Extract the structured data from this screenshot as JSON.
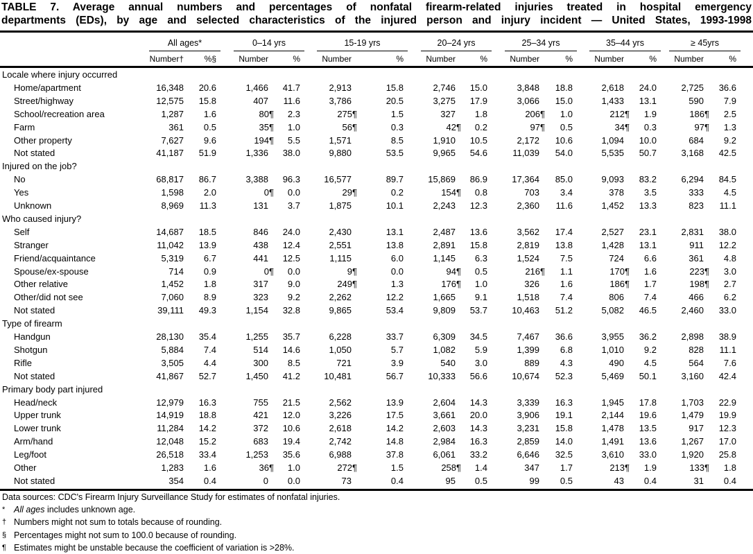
{
  "title": {
    "line1": "TABLE 7. Average annual numbers and percentages of nonfatal firearm-related injuries treated in hospital emergency",
    "line2": "departments (EDs), by age and selected characteristics of the injured person and injury incident — United States, 1993-1998"
  },
  "columns": {
    "groups": [
      "All ages*",
      "0–14 yrs",
      "15-19 yrs",
      "20–24 yrs",
      "25–34 yrs",
      "35–44 yrs",
      "≥ 45yrs"
    ],
    "sub": [
      "Number†",
      "%§",
      "Number",
      "%",
      "Number",
      "%",
      "Number",
      "%",
      "Number",
      "%",
      "Number",
      "%",
      "Number",
      "%"
    ]
  },
  "sections": [
    {
      "title": "Locale where injury occurred",
      "rows": [
        {
          "label": "Home/apartment",
          "values": [
            "16,348",
            "20.6",
            "1,466",
            "41.7",
            "2,913",
            "15.8",
            "2,746",
            "15.0",
            "3,848",
            "18.8",
            "2,618",
            "24.0",
            "2,725",
            "36.6"
          ]
        },
        {
          "label": "Street/highway",
          "values": [
            "12,575",
            "15.8",
            "407",
            "11.6",
            "3,786",
            "20.5",
            "3,275",
            "17.9",
            "3,066",
            "15.0",
            "1,433",
            "13.1",
            "590",
            "7.9"
          ]
        },
        {
          "label": "School/recreation area",
          "values": [
            "1,287",
            "1.6",
            "80¶",
            "2.3",
            "275¶",
            "1.5",
            "327",
            "1.8",
            "206¶",
            "1.0",
            "212¶",
            "1.9",
            "186¶",
            "2.5"
          ]
        },
        {
          "label": "Farm",
          "values": [
            "361",
            "0.5",
            "35¶",
            "1.0",
            "56¶",
            "0.3",
            "42¶",
            "0.2",
            "97¶",
            "0.5",
            "34¶",
            "0.3",
            "97¶",
            "1.3"
          ]
        },
        {
          "label": "Other property",
          "values": [
            "7,627",
            "9.6",
            "194¶",
            "5.5",
            "1,571",
            "8.5",
            "1,910",
            "10.5",
            "2,172",
            "10.6",
            "1,094",
            "10.0",
            "684",
            "9.2"
          ]
        },
        {
          "label": "Not stated",
          "values": [
            "41,187",
            "51.9",
            "1,336",
            "38.0",
            "9,880",
            "53.5",
            "9,965",
            "54.6",
            "11,039",
            "54.0",
            "5,535",
            "50.7",
            "3,168",
            "42.5"
          ]
        }
      ]
    },
    {
      "title": "Injured on the job?",
      "rows": [
        {
          "label": "No",
          "values": [
            "68,817",
            "86.7",
            "3,388",
            "96.3",
            "16,577",
            "89.7",
            "15,869",
            "86.9",
            "17,364",
            "85.0",
            "9,093",
            "83.2",
            "6,294",
            "84.5"
          ]
        },
        {
          "label": "Yes",
          "values": [
            "1,598",
            "2.0",
            "0¶",
            "0.0",
            "29¶",
            "0.2",
            "154¶",
            "0.8",
            "703",
            "3.4",
            "378",
            "3.5",
            "333",
            "4.5"
          ]
        },
        {
          "label": "Unknown",
          "values": [
            "8,969",
            "11.3",
            "131",
            "3.7",
            "1,875",
            "10.1",
            "2,243",
            "12.3",
            "2,360",
            "11.6",
            "1,452",
            "13.3",
            "823",
            "11.1"
          ]
        }
      ]
    },
    {
      "title": "Who caused injury?",
      "rows": [
        {
          "label": "Self",
          "values": [
            "14,687",
            "18.5",
            "846",
            "24.0",
            "2,430",
            "13.1",
            "2,487",
            "13.6",
            "3,562",
            "17.4",
            "2,527",
            "23.1",
            "2,831",
            "38.0"
          ]
        },
        {
          "label": "Stranger",
          "values": [
            "11,042",
            "13.9",
            "438",
            "12.4",
            "2,551",
            "13.8",
            "2,891",
            "15.8",
            "2,819",
            "13.8",
            "1,428",
            "13.1",
            "911",
            "12.2"
          ]
        },
        {
          "label": "Friend/acquaintance",
          "values": [
            "5,319",
            "6.7",
            "441",
            "12.5",
            "1,115",
            "6.0",
            "1,145",
            "6.3",
            "1,524",
            "7.5",
            "724",
            "6.6",
            "361",
            "4.8"
          ]
        },
        {
          "label": "Spouse/ex-spouse",
          "values": [
            "714",
            "0.9",
            "0¶",
            "0.0",
            "9¶",
            "0.0",
            "94¶",
            "0.5",
            "216¶",
            "1.1",
            "170¶",
            "1.6",
            "223¶",
            "3.0"
          ]
        },
        {
          "label": "Other relative",
          "values": [
            "1,452",
            "1.8",
            "317",
            "9.0",
            "249¶",
            "1.3",
            "176¶",
            "1.0",
            "326",
            "1.6",
            "186¶",
            "1.7",
            "198¶",
            "2.7"
          ]
        },
        {
          "label": "Other/did not see",
          "values": [
            "7,060",
            "8.9",
            "323",
            "9.2",
            "2,262",
            "12.2",
            "1,665",
            "9.1",
            "1,518",
            "7.4",
            "806",
            "7.4",
            "466",
            "6.2"
          ]
        },
        {
          "label": "Not stated",
          "values": [
            "39,111",
            "49.3",
            "1,154",
            "32.8",
            "9,865",
            "53.4",
            "9,809",
            "53.7",
            "10,463",
            "51.2",
            "5,082",
            "46.5",
            "2,460",
            "33.0"
          ]
        }
      ]
    },
    {
      "title": "Type of firearm",
      "rows": [
        {
          "label": "Handgun",
          "values": [
            "28,130",
            "35.4",
            "1,255",
            "35.7",
            "6,228",
            "33.7",
            "6,309",
            "34.5",
            "7,467",
            "36.6",
            "3,955",
            "36.2",
            "2,898",
            "38.9"
          ]
        },
        {
          "label": "Shotgun",
          "values": [
            "5,884",
            "7.4",
            "514",
            "14.6",
            "1,050",
            "5.7",
            "1,082",
            "5.9",
            "1,399",
            "6.8",
            "1,010",
            "9.2",
            "828",
            "11.1"
          ]
        },
        {
          "label": "Rifle",
          "values": [
            "3,505",
            "4.4",
            "300",
            "8.5",
            "721",
            "3.9",
            "540",
            "3.0",
            "889",
            "4.3",
            "490",
            "4.5",
            "564",
            "7.6"
          ]
        },
        {
          "label": "Not stated",
          "values": [
            "41,867",
            "52.7",
            "1,450",
            "41.2",
            "10,481",
            "56.7",
            "10,333",
            "56.6",
            "10,674",
            "52.3",
            "5,469",
            "50.1",
            "3,160",
            "42.4"
          ]
        }
      ]
    },
    {
      "title": "Primary body part injured",
      "rows": [
        {
          "label": "Head/neck",
          "values": [
            "12,979",
            "16.3",
            "755",
            "21.5",
            "2,562",
            "13.9",
            "2,604",
            "14.3",
            "3,339",
            "16.3",
            "1,945",
            "17.8",
            "1,703",
            "22.9"
          ]
        },
        {
          "label": "Upper trunk",
          "values": [
            "14,919",
            "18.8",
            "421",
            "12.0",
            "3,226",
            "17.5",
            "3,661",
            "20.0",
            "3,906",
            "19.1",
            "2,144",
            "19.6",
            "1,479",
            "19.9"
          ]
        },
        {
          "label": "Lower trunk",
          "values": [
            "11,284",
            "14.2",
            "372",
            "10.6",
            "2,618",
            "14.2",
            "2,603",
            "14.3",
            "3,231",
            "15.8",
            "1,478",
            "13.5",
            "917",
            "12.3"
          ]
        },
        {
          "label": "Arm/hand",
          "values": [
            "12,048",
            "15.2",
            "683",
            "19.4",
            "2,742",
            "14.8",
            "2,984",
            "16.3",
            "2,859",
            "14.0",
            "1,491",
            "13.6",
            "1,267",
            "17.0"
          ]
        },
        {
          "label": "Leg/foot",
          "values": [
            "26,518",
            "33.4",
            "1,253",
            "35.6",
            "6,988",
            "37.8",
            "6,061",
            "33.2",
            "6,646",
            "32.5",
            "3,610",
            "33.0",
            "1,920",
            "25.8"
          ]
        },
        {
          "label": "Other",
          "values": [
            "1,283",
            "1.6",
            "36¶",
            "1.0",
            "272¶",
            "1.5",
            "258¶",
            "1.4",
            "347",
            "1.7",
            "213¶",
            "1.9",
            "133¶",
            "1.8"
          ]
        },
        {
          "label": "Not stated",
          "values": [
            "354",
            "0.4",
            "0",
            "0.0",
            "73",
            "0.4",
            "95",
            "0.5",
            "99",
            "0.5",
            "43",
            "0.4",
            "31",
            "0.4"
          ]
        }
      ]
    }
  ],
  "footnotes": {
    "source": "Data sources: CDC's Firearm Injury Surveillance Study for estimates of nonfatal injuries.",
    "notes": [
      {
        "mark": "*",
        "italic": "All ages",
        "text": " includes unknown age."
      },
      {
        "mark": "†",
        "italic": "",
        "text": "Numbers might not sum to totals because of rounding."
      },
      {
        "mark": "§",
        "italic": "",
        "text": "Percentages might not sum to 100.0 because of rounding."
      },
      {
        "mark": "¶",
        "italic": "",
        "text": "Estimates might be unstable because the coefficient of variation is >28%."
      }
    ]
  }
}
